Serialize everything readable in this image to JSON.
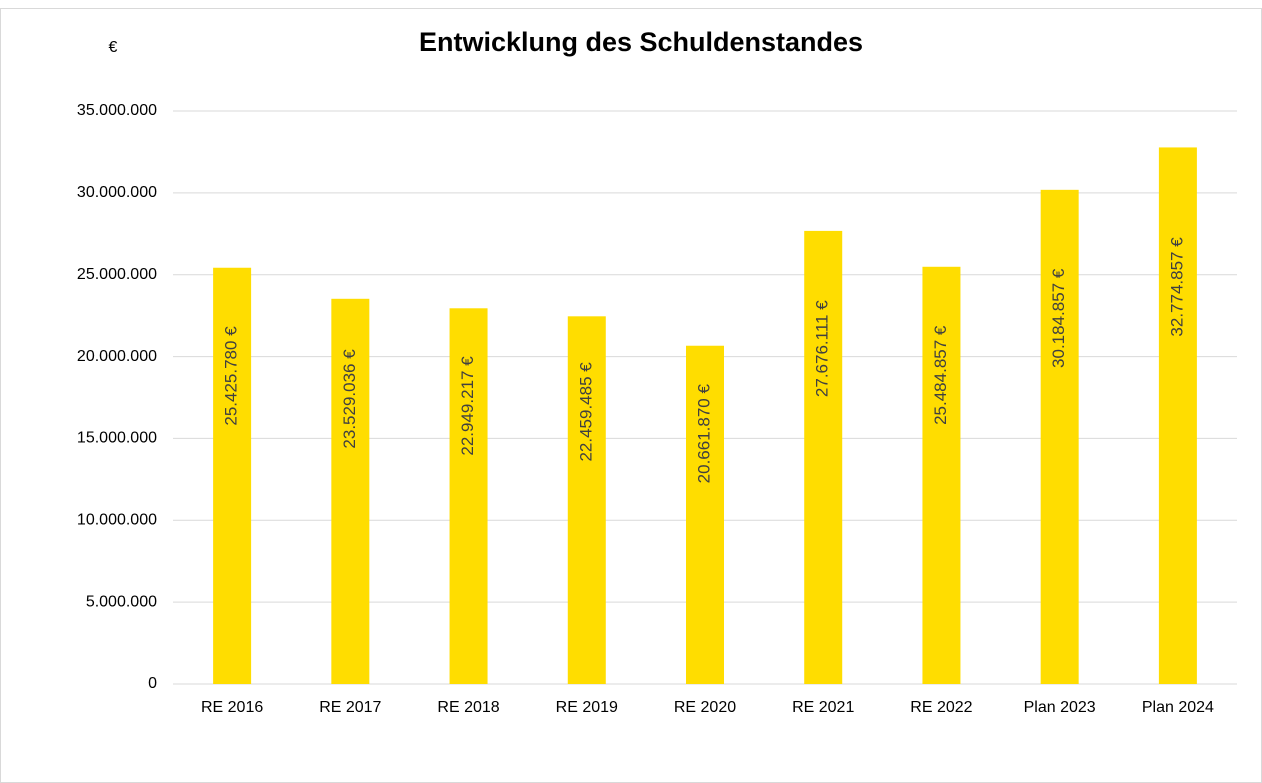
{
  "chart_data": {
    "type": "bar",
    "title": "Entwicklung des Schuldenstandes",
    "ylabel": "€",
    "categories": [
      "RE 2016",
      "RE 2017",
      "RE 2018",
      "RE 2019",
      "RE 2020",
      "RE 2021",
      "RE 2022",
      "Plan 2023",
      "Plan 2024"
    ],
    "values": [
      25425780,
      23529036,
      22949217,
      22459485,
      20661870,
      27676111,
      25484857,
      30184857,
      32774857
    ],
    "value_labels": [
      "25.425.780 €",
      "23.529.036 €",
      "22.949.217 €",
      "22.459.485 €",
      "20.661.870 €",
      "27.676.111 €",
      "25.484.857 €",
      "30.184.857 €",
      "32.774.857 €"
    ],
    "color": "#ffdd00",
    "ylim": [
      0,
      35000000
    ],
    "yticks": [
      0,
      {
        "value": 5000000,
        "label": "5.000.000"
      },
      {
        "value": 10000000,
        "label": "10.000.000"
      },
      {
        "value": 15000000,
        "label": "15.000.000"
      },
      {
        "value": 20000000,
        "label": "20.000.000"
      },
      {
        "value": 25000000,
        "label": "25.000.000"
      },
      {
        "value": 30000000,
        "label": "30.000.000"
      },
      {
        "value": 35000000,
        "label": "35.000.000"
      }
    ],
    "grid": true
  }
}
